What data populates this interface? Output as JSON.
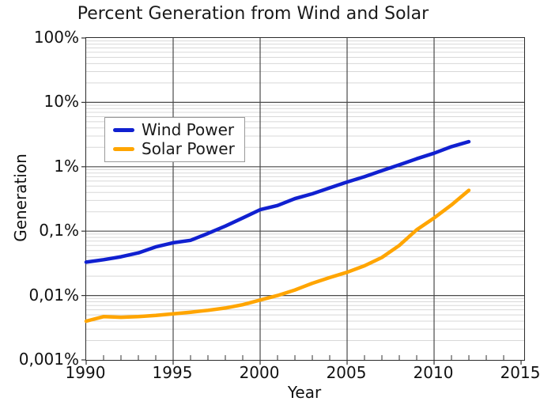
{
  "title": "Percent Generation from Wind and Solar",
  "colors": {
    "wind_line": "#1020d0",
    "solar_line": "#ffa500",
    "axis_border": "#2b2b2b",
    "major_grid": "#4a4a4a",
    "minor_grid": "#d8d8d8",
    "tick_mark": "#333333",
    "text": "#111111"
  },
  "chart_data": {
    "type": "line",
    "title": "Percent Generation from Wind and Solar",
    "xlabel": "Year",
    "ylabel": "Generation",
    "x_range": [
      1990,
      2015
    ],
    "x_major_ticks": [
      1990,
      1995,
      2000,
      2005,
      2010,
      2015
    ],
    "x_tick_labels": [
      "1990",
      "1995",
      "2000",
      "2005",
      "2010",
      "2015"
    ],
    "x_minor_tick_step_years": 1,
    "y_scale": "log",
    "y_range_percent": [
      0.001,
      100
    ],
    "y_tick_values_percent": [
      100,
      10,
      1,
      0.1,
      0.01,
      0.001
    ],
    "y_tick_labels": [
      "100%",
      "10%",
      "1%",
      "0,1%",
      "0,01%",
      "0,001%"
    ],
    "grid": "major-dark-and-log-minor-light",
    "legend_position": "upper-left-inside",
    "x": [
      1990,
      1991,
      1992,
      1993,
      1994,
      1995,
      1996,
      1997,
      1998,
      1999,
      2000,
      2001,
      2002,
      2003,
      2004,
      2005,
      2006,
      2007,
      2008,
      2009,
      2010,
      2011,
      2012
    ],
    "series": [
      {
        "name": "Wind Power",
        "color": "#1020d0",
        "values_percent": [
          0.033,
          0.036,
          0.04,
          0.046,
          0.057,
          0.066,
          0.072,
          0.092,
          0.12,
          0.16,
          0.215,
          0.25,
          0.32,
          0.38,
          0.47,
          0.58,
          0.7,
          0.87,
          1.07,
          1.33,
          1.62,
          2.05,
          2.45
        ]
      },
      {
        "name": "Solar Power",
        "color": "#ffa500",
        "values_percent": [
          0.004,
          0.0047,
          0.0046,
          0.0047,
          0.0049,
          0.0052,
          0.0055,
          0.0059,
          0.0064,
          0.0072,
          0.0085,
          0.01,
          0.0122,
          0.0155,
          0.019,
          0.023,
          0.029,
          0.039,
          0.06,
          0.105,
          0.16,
          0.255,
          0.43
        ]
      }
    ]
  }
}
